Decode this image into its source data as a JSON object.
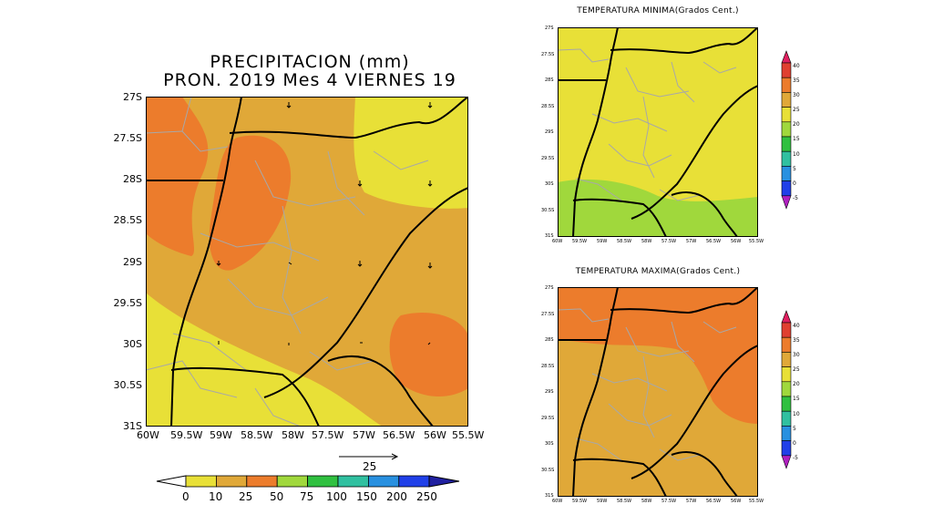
{
  "precip_map": {
    "title_line1": "PRECIPITACION (mm)",
    "title_line2": "PRON. 2019 Mes 4 VIERNES 19",
    "lat_ticks": [
      "27S",
      "27.5S",
      "28S",
      "28.5S",
      "29S",
      "29.5S",
      "30S",
      "30.5S",
      "31S"
    ],
    "lon_ticks": [
      "60W",
      "59.5W",
      "59W",
      "58.5W",
      "58W",
      "57.5W",
      "57W",
      "56.5W",
      "56W",
      "55.5W"
    ],
    "vector_ref_label": "25",
    "colorbar_labels": [
      "0",
      "10",
      "25",
      "50",
      "75",
      "100",
      "150",
      "200",
      "250"
    ],
    "colorbar_colors": [
      "#e8e037",
      "#e0a838",
      "#ec7c2c",
      "#a0d83c",
      "#30c040",
      "#30c0a0",
      "#2890e0",
      "#2040e8",
      "#2020a0"
    ]
  },
  "tmin_map": {
    "title": "TEMPERATURA MINIMA(Grados Cent.)",
    "lat_ticks": [
      "27S",
      "27.5S",
      "28S",
      "28.5S",
      "29S",
      "29.5S",
      "30S",
      "30.5S",
      "31S"
    ],
    "lon_ticks": [
      "60W",
      "59.5W",
      "59W",
      "58.5W",
      "58W",
      "57.5W",
      "57W",
      "56.5W",
      "56W",
      "55.5W"
    ],
    "colorbar_labels": [
      "40",
      "35",
      "30",
      "25",
      "20",
      "15",
      "10",
      "5",
      "0",
      "-5"
    ]
  },
  "tmax_map": {
    "title": "TEMPERATURA MAXIMA(Grados Cent.)",
    "lat_ticks": [
      "27S",
      "27.5S",
      "28S",
      "28.5S",
      "29S",
      "29.5S",
      "30S",
      "30.5S",
      "31S"
    ],
    "lon_ticks": [
      "60W",
      "59.5W",
      "59W",
      "58.5W",
      "58W",
      "57.5W",
      "57W",
      "56.5W",
      "56W",
      "55.5W"
    ],
    "colorbar_labels": [
      "40",
      "35",
      "30",
      "25",
      "20",
      "15",
      "10",
      "5",
      "0",
      "-5"
    ]
  },
  "temp_colorbar_colors": [
    "#e02060",
    "#e04030",
    "#ec7c2c",
    "#e0a838",
    "#e8e037",
    "#a0d83c",
    "#30c040",
    "#30c0a0",
    "#2890e0",
    "#2040e8",
    "#b020c0"
  ]
}
